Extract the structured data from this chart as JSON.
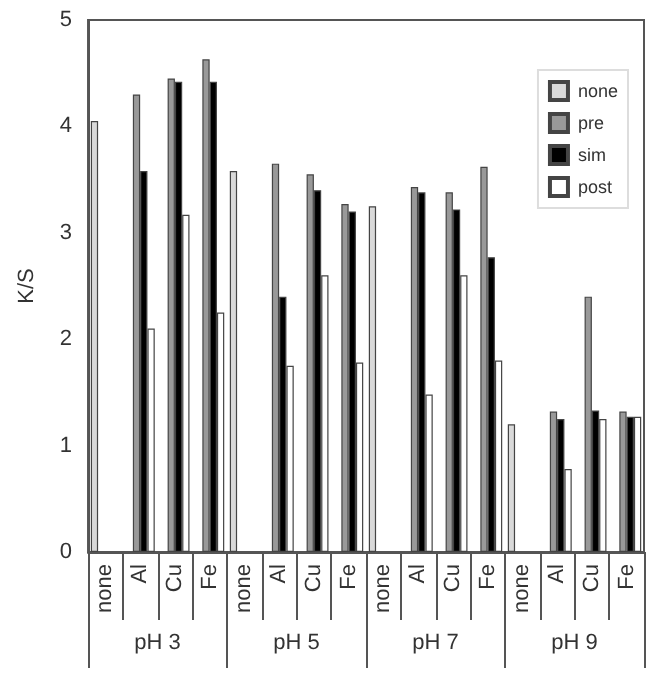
{
  "chart_data": {
    "type": "bar",
    "ylabel": "K/S",
    "categories": [
      "none",
      "Al",
      "Cu",
      "Fe",
      "none",
      "Al",
      "Cu",
      "Fe",
      "none",
      "Al",
      "Cu",
      "Fe",
      "none",
      "Al",
      "Cu",
      "Fe"
    ],
    "series": [
      {
        "name": "none",
        "color": "#d9d9d9",
        "values": [
          4.05,
          null,
          null,
          null,
          3.58,
          null,
          null,
          null,
          3.25,
          null,
          null,
          null,
          1.2,
          null,
          null,
          null
        ]
      },
      {
        "name": "pre",
        "color": "#999999",
        "values": [
          null,
          4.3,
          4.45,
          4.63,
          null,
          3.65,
          3.55,
          3.27,
          null,
          3.43,
          3.38,
          3.62,
          null,
          1.32,
          2.4,
          1.32
        ]
      },
      {
        "name": "sim",
        "color": "#000000",
        "values": [
          null,
          3.58,
          4.42,
          4.42,
          null,
          2.4,
          3.4,
          3.2,
          null,
          3.38,
          3.22,
          2.77,
          null,
          1.25,
          1.33,
          1.27
        ]
      },
      {
        "name": "post",
        "color": "#ffffff",
        "values": [
          null,
          2.1,
          3.17,
          2.25,
          null,
          1.75,
          2.6,
          1.78,
          null,
          1.48,
          2.6,
          1.8,
          null,
          0.78,
          1.25,
          1.27
        ]
      }
    ],
    "annotations": [
      "pH 3",
      "pH 5",
      "pH 7",
      "pH 9"
    ],
    "ylim": [
      0,
      5
    ],
    "yticks": [
      0,
      1,
      2,
      3,
      4,
      5
    ],
    "legend": "top right"
  }
}
